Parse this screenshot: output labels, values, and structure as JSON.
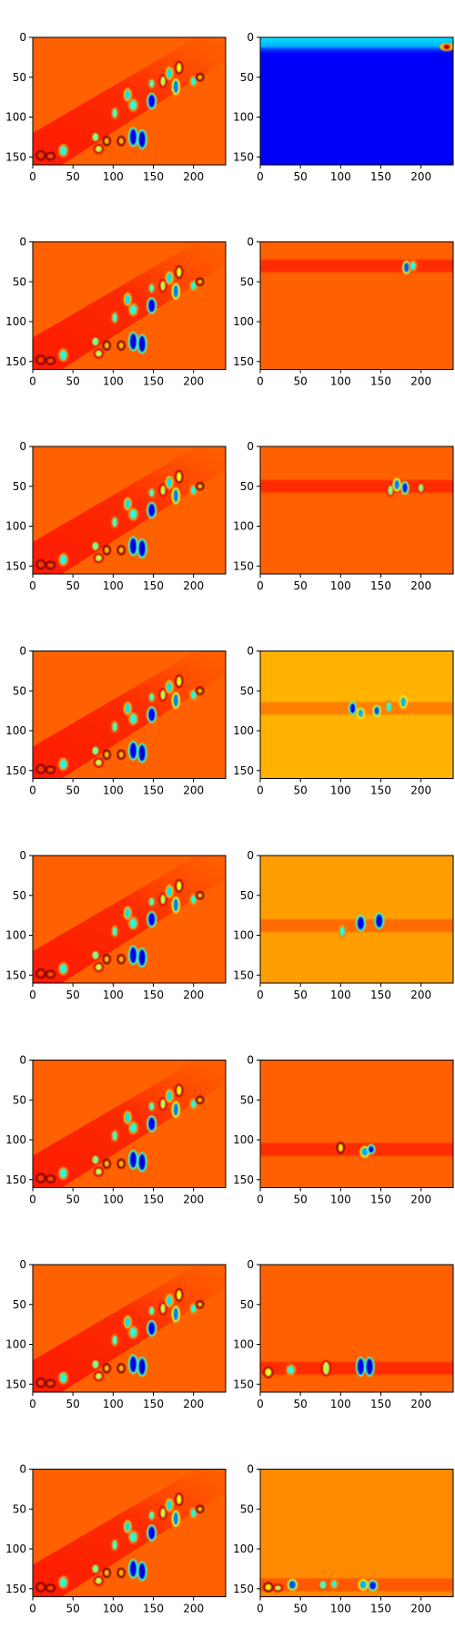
{
  "chart_data": {
    "type": "heatmap",
    "rows": 8,
    "cols": 2,
    "colormap": "jet",
    "image_size": {
      "width": 240,
      "height": 160
    },
    "xlim": [
      0,
      240
    ],
    "ylim": [
      160,
      0
    ],
    "x_ticks": [
      0,
      50,
      100,
      150,
      200
    ],
    "y_ticks": [
      0,
      50,
      100,
      150
    ],
    "x_tick_labels": [
      "0",
      "50",
      "100",
      "150",
      "200"
    ],
    "y_tick_labels": [
      "0",
      "50",
      "100",
      "150"
    ],
    "base_blobs": [
      [
        10,
        148,
        4,
        4,
        0.82
      ],
      [
        22,
        149,
        4,
        3,
        0.8
      ],
      [
        38,
        142,
        4,
        6,
        0.4
      ],
      [
        78,
        125,
        4,
        5,
        0.5
      ],
      [
        82,
        140,
        4,
        4,
        0.55
      ],
      [
        92,
        130,
        3,
        4,
        0.7
      ],
      [
        102,
        95,
        3,
        6,
        0.45
      ],
      [
        110,
        130,
        3,
        4,
        0.7
      ],
      [
        118,
        72,
        3,
        6,
        0.35
      ],
      [
        125,
        125,
        4,
        10,
        0.1
      ],
      [
        125,
        85,
        4,
        6,
        0.4
      ],
      [
        136,
        128,
        4,
        10,
        0.08
      ],
      [
        148,
        80,
        4,
        8,
        0.12
      ],
      [
        148,
        58,
        3,
        5,
        0.45
      ],
      [
        162,
        55,
        3,
        6,
        0.55
      ],
      [
        170,
        45,
        3,
        6,
        0.35
      ],
      [
        178,
        62,
        3,
        8,
        0.25
      ],
      [
        182,
        38,
        3,
        6,
        0.6
      ],
      [
        200,
        55,
        3,
        5,
        0.4
      ],
      [
        208,
        50,
        3,
        3,
        0.7
      ]
    ],
    "panels": [
      {
        "row": 0,
        "left_bg": 0.78,
        "right_bg": 0.12,
        "band_y": 8,
        "hotspot": [
          232,
          12,
          0.95
        ]
      },
      {
        "row": 1,
        "left_bg": 0.78,
        "right_bg": 0.78,
        "band_y": 30,
        "blobs": [
          [
            182,
            32,
            3,
            6,
            0.2
          ],
          [
            190,
            30,
            3,
            5,
            0.4
          ]
        ]
      },
      {
        "row": 2,
        "left_bg": 0.78,
        "right_bg": 0.78,
        "band_y": 50,
        "blobs": [
          [
            162,
            55,
            3,
            6,
            0.5
          ],
          [
            170,
            48,
            3,
            6,
            0.25
          ],
          [
            180,
            52,
            3,
            6,
            0.15
          ],
          [
            200,
            52,
            3,
            5,
            0.5
          ]
        ]
      },
      {
        "row": 3,
        "left_bg": 0.78,
        "right_bg": 0.7,
        "band_y": 72,
        "blobs": [
          [
            115,
            72,
            3,
            6,
            0.1
          ],
          [
            125,
            78,
            3,
            5,
            0.3
          ],
          [
            145,
            75,
            3,
            5,
            0.2
          ],
          [
            160,
            70,
            3,
            6,
            0.4
          ],
          [
            178,
            64,
            3,
            6,
            0.3
          ]
        ]
      },
      {
        "row": 4,
        "left_bg": 0.78,
        "right_bg": 0.72,
        "band_y": 88,
        "blobs": [
          [
            102,
            95,
            3,
            6,
            0.4
          ],
          [
            125,
            85,
            4,
            8,
            0.1
          ],
          [
            148,
            82,
            4,
            8,
            0.08
          ]
        ]
      },
      {
        "row": 5,
        "left_bg": 0.78,
        "right_bg": 0.78,
        "band_y": 112,
        "blobs": [
          [
            100,
            110,
            3,
            5,
            0.65
          ],
          [
            130,
            115,
            4,
            5,
            0.3
          ],
          [
            138,
            112,
            3,
            4,
            0.1
          ]
        ]
      },
      {
        "row": 6,
        "left_bg": 0.78,
        "right_bg": 0.78,
        "band_y": 130,
        "blobs": [
          [
            10,
            135,
            4,
            5,
            0.6
          ],
          [
            38,
            132,
            4,
            5,
            0.4
          ],
          [
            82,
            130,
            4,
            8,
            0.55
          ],
          [
            125,
            128,
            4,
            10,
            0.1
          ],
          [
            136,
            128,
            4,
            10,
            0.08
          ]
        ]
      },
      {
        "row": 7,
        "left_bg": 0.78,
        "right_bg": 0.74,
        "band_y": 145,
        "blobs": [
          [
            10,
            148,
            4,
            4,
            0.65
          ],
          [
            22,
            149,
            4,
            3,
            0.55
          ],
          [
            40,
            145,
            4,
            5,
            0.2
          ],
          [
            78,
            145,
            4,
            5,
            0.45
          ],
          [
            92,
            144,
            3,
            4,
            0.4
          ],
          [
            128,
            145,
            4,
            5,
            0.3
          ],
          [
            140,
            146,
            4,
            5,
            0.15
          ]
        ]
      }
    ]
  }
}
